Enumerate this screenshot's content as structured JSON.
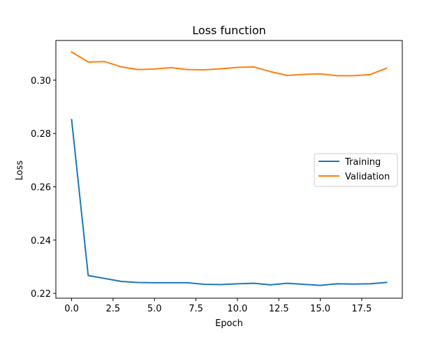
{
  "chart_data": {
    "type": "line",
    "title": "Loss function",
    "xlabel": "Epoch",
    "ylabel": "Loss",
    "xlim": [
      -0.95,
      19.95
    ],
    "ylim": [
      0.2182,
      0.3149
    ],
    "xticks": [
      0.0,
      2.5,
      5.0,
      7.5,
      10.0,
      12.5,
      15.0,
      17.5
    ],
    "xtick_labels": [
      "0.0",
      "2.5",
      "5.0",
      "7.5",
      "10.0",
      "12.5",
      "15.0",
      "17.5"
    ],
    "yticks": [
      0.22,
      0.24,
      0.26,
      0.28,
      0.3
    ],
    "ytick_labels": [
      "0.22",
      "0.24",
      "0.26",
      "0.28",
      "0.30"
    ],
    "grid": false,
    "legend_position": "center-right",
    "x": [
      0,
      1,
      2,
      3,
      4,
      5,
      6,
      7,
      8,
      9,
      10,
      11,
      12,
      13,
      14,
      15,
      16,
      17,
      18,
      19
    ],
    "series": [
      {
        "name": "Training",
        "color": "#1f77b4",
        "values": [
          0.2852,
          0.2267,
          0.2256,
          0.2245,
          0.2241,
          0.224,
          0.224,
          0.224,
          0.2234,
          0.2233,
          0.2236,
          0.2238,
          0.2232,
          0.2238,
          0.2234,
          0.223,
          0.2236,
          0.2235,
          0.2236,
          0.2241
        ]
      },
      {
        "name": "Validation",
        "color": "#ff7f0e",
        "values": [
          0.3106,
          0.3068,
          0.307,
          0.305,
          0.304,
          0.3042,
          0.3047,
          0.304,
          0.3039,
          0.3043,
          0.3048,
          0.305,
          0.3032,
          0.3018,
          0.3022,
          0.3024,
          0.3017,
          0.3017,
          0.3021,
          0.3045
        ]
      }
    ]
  }
}
